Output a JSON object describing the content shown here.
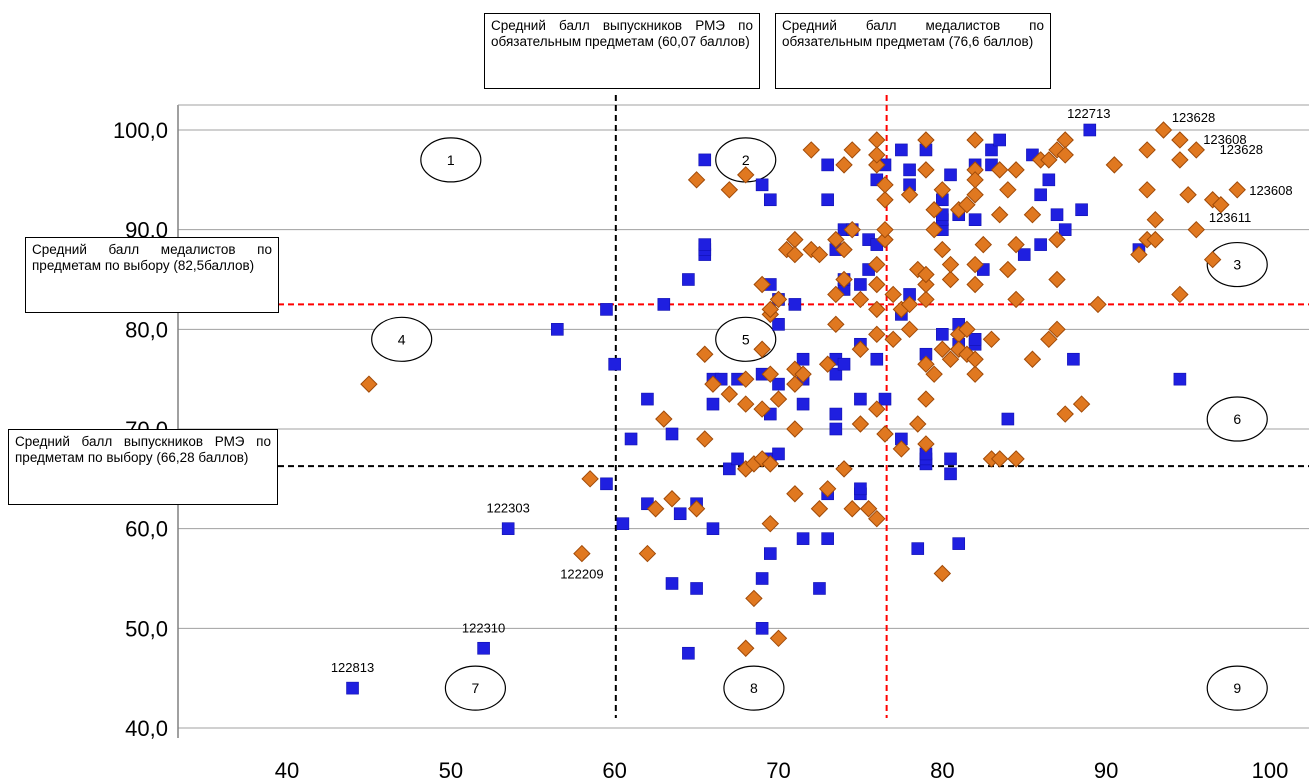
{
  "chart_data": {
    "type": "scatter",
    "xlim": [
      40,
      100
    ],
    "ylim": [
      40,
      100
    ],
    "x_ticks": [
      "40",
      "50",
      "60",
      "70",
      "80",
      "90",
      "100"
    ],
    "y_ticks": [
      "40,0",
      "50,0",
      "60,0",
      "70,0",
      "80,0",
      "90,0",
      "100,0"
    ],
    "grid": "horizontal",
    "series": [
      {
        "marker": "square",
        "color": "#1f1fe0",
        "points": [
          [
            44,
            44
          ],
          [
            52,
            48
          ],
          [
            53.5,
            60
          ],
          [
            56.5,
            80
          ],
          [
            59.5,
            64.5
          ],
          [
            59.5,
            82
          ],
          [
            60,
            76.5
          ],
          [
            60.5,
            60.5
          ],
          [
            61,
            69
          ],
          [
            62,
            62.5
          ],
          [
            62,
            73
          ],
          [
            63,
            82.5
          ],
          [
            63.5,
            54.5
          ],
          [
            63.5,
            69.5
          ],
          [
            64,
            61.5
          ],
          [
            64.5,
            47.5
          ],
          [
            64.5,
            85
          ],
          [
            65,
            54
          ],
          [
            65,
            62.5
          ],
          [
            65.5,
            87.5
          ],
          [
            65.5,
            88
          ],
          [
            65.5,
            88.5
          ],
          [
            65.5,
            97
          ],
          [
            66,
            60
          ],
          [
            66,
            72.5
          ],
          [
            66,
            75
          ],
          [
            66.5,
            75
          ],
          [
            67,
            66
          ],
          [
            67.5,
            75
          ],
          [
            67.5,
            67
          ],
          [
            69,
            50
          ],
          [
            69,
            55
          ],
          [
            69,
            75.5
          ],
          [
            69,
            94.5
          ],
          [
            69.5,
            57.5
          ],
          [
            69.5,
            67
          ],
          [
            69.5,
            71.5
          ],
          [
            69.5,
            84.5
          ],
          [
            69.5,
            93
          ],
          [
            70,
            67.5
          ],
          [
            70,
            74.5
          ],
          [
            70,
            80.5
          ],
          [
            70,
            83
          ],
          [
            71,
            82.5
          ],
          [
            71.5,
            59
          ],
          [
            71.5,
            72.5
          ],
          [
            71.5,
            75
          ],
          [
            71.5,
            77
          ],
          [
            72.5,
            54
          ],
          [
            73,
            59
          ],
          [
            73,
            63.5
          ],
          [
            73,
            93
          ],
          [
            73,
            96.5
          ],
          [
            73.5,
            70
          ],
          [
            73.5,
            71.5
          ],
          [
            73.5,
            75.5
          ],
          [
            73.5,
            77
          ],
          [
            73.5,
            88
          ],
          [
            74,
            76.5
          ],
          [
            74,
            84
          ],
          [
            74,
            85
          ],
          [
            74,
            90
          ],
          [
            74.5,
            90
          ],
          [
            75,
            63.5
          ],
          [
            75,
            64
          ],
          [
            75,
            73
          ],
          [
            75,
            78.5
          ],
          [
            75,
            84.5
          ],
          [
            75.5,
            86
          ],
          [
            75.5,
            89
          ],
          [
            76,
            77
          ],
          [
            76,
            88.5
          ],
          [
            76,
            95
          ],
          [
            76.5,
            73
          ],
          [
            76.5,
            96.5
          ],
          [
            77.5,
            69
          ],
          [
            77.5,
            81.5
          ],
          [
            77.5,
            98
          ],
          [
            78,
            83.5
          ],
          [
            78,
            94.5
          ],
          [
            78,
            96
          ],
          [
            78.5,
            58
          ],
          [
            79,
            66.5
          ],
          [
            79,
            67
          ],
          [
            79,
            67.5
          ],
          [
            79,
            77.5
          ],
          [
            79,
            98
          ],
          [
            80,
            79.5
          ],
          [
            80,
            90
          ],
          [
            80,
            91
          ],
          [
            80,
            91.5
          ],
          [
            80,
            93
          ],
          [
            80.5,
            65.5
          ],
          [
            80.5,
            67
          ],
          [
            80.5,
            95.5
          ],
          [
            81,
            58.5
          ],
          [
            81,
            78.5
          ],
          [
            81,
            80.5
          ],
          [
            81,
            91.5
          ],
          [
            82,
            78.5
          ],
          [
            82,
            79
          ],
          [
            82,
            91
          ],
          [
            82,
            96.5
          ],
          [
            82.5,
            86
          ],
          [
            83,
            96.5
          ],
          [
            83,
            98
          ],
          [
            83.5,
            99
          ],
          [
            84,
            71
          ],
          [
            85,
            87.5
          ],
          [
            85.5,
            97.5
          ],
          [
            86,
            88.5
          ],
          [
            86,
            93.5
          ],
          [
            86.5,
            95
          ],
          [
            87,
            91.5
          ],
          [
            87.5,
            90
          ],
          [
            88,
            77
          ],
          [
            88.5,
            92
          ],
          [
            89,
            100
          ],
          [
            92,
            88
          ],
          [
            94.5,
            75
          ]
        ]
      },
      {
        "marker": "diamond",
        "color": "#e07820",
        "points": [
          [
            45,
            74.5
          ],
          [
            58,
            57.5
          ],
          [
            58.5,
            65
          ],
          [
            62,
            57.5
          ],
          [
            62.5,
            62
          ],
          [
            63,
            71
          ],
          [
            63.5,
            63
          ],
          [
            65,
            62
          ],
          [
            65,
            95
          ],
          [
            65.5,
            69
          ],
          [
            65.5,
            77.5
          ],
          [
            66,
            74.5
          ],
          [
            67,
            94
          ],
          [
            67,
            73.5
          ],
          [
            68,
            48
          ],
          [
            68,
            75
          ],
          [
            68,
            66
          ],
          [
            68,
            72.5
          ],
          [
            68,
            95.5
          ],
          [
            68.5,
            53
          ],
          [
            68.5,
            66.5
          ],
          [
            69,
            67
          ],
          [
            69,
            78
          ],
          [
            69,
            72
          ],
          [
            69,
            84.5
          ],
          [
            69.5,
            60.5
          ],
          [
            69.5,
            75.5
          ],
          [
            69.5,
            66.5
          ],
          [
            69.5,
            81.5
          ],
          [
            69.5,
            82
          ],
          [
            70,
            49
          ],
          [
            70,
            73
          ],
          [
            70,
            83
          ],
          [
            70.5,
            88
          ],
          [
            71,
            76
          ],
          [
            71,
            70
          ],
          [
            71,
            74.5
          ],
          [
            71,
            63.5
          ],
          [
            71,
            89
          ],
          [
            71,
            87.5
          ],
          [
            71.5,
            75.5
          ],
          [
            72,
            88
          ],
          [
            72,
            98
          ],
          [
            72.5,
            87.5
          ],
          [
            72.5,
            62
          ],
          [
            73,
            64
          ],
          [
            73,
            76.5
          ],
          [
            73.5,
            80.5
          ],
          [
            73.5,
            83.5
          ],
          [
            73.5,
            89
          ],
          [
            74,
            66
          ],
          [
            74,
            88
          ],
          [
            74,
            96.5
          ],
          [
            74,
            85
          ],
          [
            74.5,
            62
          ],
          [
            74.5,
            98
          ],
          [
            74.5,
            90
          ],
          [
            75,
            70.5
          ],
          [
            75,
            78
          ],
          [
            75,
            83
          ],
          [
            75.5,
            62
          ],
          [
            76,
            61
          ],
          [
            76,
            72
          ],
          [
            76,
            96.5
          ],
          [
            76,
            84.5
          ],
          [
            76,
            79.5
          ],
          [
            76,
            86.5
          ],
          [
            76,
            99
          ],
          [
            76,
            97.5
          ],
          [
            76,
            82
          ],
          [
            76.5,
            69.5
          ],
          [
            76.5,
            93
          ],
          [
            76.5,
            89
          ],
          [
            76.5,
            90
          ],
          [
            76.5,
            94.5
          ],
          [
            77,
            79
          ],
          [
            77,
            83.5
          ],
          [
            77.5,
            68
          ],
          [
            77.5,
            82
          ],
          [
            78,
            80
          ],
          [
            78,
            93.5
          ],
          [
            78,
            82.5
          ],
          [
            78.5,
            70.5
          ],
          [
            78.5,
            86
          ],
          [
            79,
            68.5
          ],
          [
            79,
            76.5
          ],
          [
            79,
            73
          ],
          [
            79,
            83
          ],
          [
            79,
            84.5
          ],
          [
            79,
            85.5
          ],
          [
            79,
            99
          ],
          [
            79,
            96
          ],
          [
            79.5,
            75.5
          ],
          [
            79.5,
            90
          ],
          [
            79.5,
            92
          ],
          [
            80,
            55.5
          ],
          [
            80,
            88
          ],
          [
            80,
            78
          ],
          [
            80,
            94
          ],
          [
            80.5,
            77
          ],
          [
            80.5,
            85
          ],
          [
            80.5,
            86.5
          ],
          [
            81,
            79.5
          ],
          [
            81,
            78
          ],
          [
            81,
            92
          ],
          [
            81.5,
            92.5
          ],
          [
            81.5,
            80
          ],
          [
            81.5,
            77.5
          ],
          [
            82,
            75.5
          ],
          [
            82,
            77
          ],
          [
            82,
            84.5
          ],
          [
            82,
            86.5
          ],
          [
            82,
            96
          ],
          [
            82,
            93.5
          ],
          [
            82,
            95
          ],
          [
            82,
            99
          ],
          [
            82.5,
            88.5
          ],
          [
            83,
            79
          ],
          [
            83,
            67
          ],
          [
            83.5,
            67
          ],
          [
            83.5,
            91.5
          ],
          [
            83.5,
            96
          ],
          [
            84,
            86
          ],
          [
            84,
            94
          ],
          [
            84.5,
            88.5
          ],
          [
            84.5,
            67
          ],
          [
            84.5,
            83
          ],
          [
            84.5,
            96
          ],
          [
            85.5,
            77
          ],
          [
            85.5,
            91.5
          ],
          [
            86,
            97
          ],
          [
            86.5,
            79
          ],
          [
            86.5,
            97
          ],
          [
            87,
            80
          ],
          [
            87,
            85
          ],
          [
            87,
            89
          ],
          [
            87,
            98
          ],
          [
            87.5,
            71.5
          ],
          [
            87.5,
            99
          ],
          [
            87.5,
            97.5
          ],
          [
            88.5,
            72.5
          ],
          [
            89.5,
            82.5
          ],
          [
            90.5,
            96.5
          ],
          [
            92,
            87.5
          ],
          [
            92.5,
            89
          ],
          [
            92.5,
            94
          ],
          [
            92.5,
            98
          ],
          [
            93,
            89
          ],
          [
            93,
            91
          ],
          [
            93.5,
            100
          ],
          [
            94.5,
            97
          ],
          [
            94.5,
            83.5
          ],
          [
            94.5,
            99
          ],
          [
            95,
            93.5
          ],
          [
            95.5,
            90
          ],
          [
            95.5,
            98
          ],
          [
            96.5,
            87
          ],
          [
            96.5,
            93
          ],
          [
            97,
            92.5
          ],
          [
            98,
            94
          ]
        ]
      }
    ],
    "point_labels": [
      {
        "text": "122813",
        "x": 44,
        "y": 44
      },
      {
        "text": "122310",
        "x": 52,
        "y": 48
      },
      {
        "text": "122303",
        "x": 53.5,
        "y": 60
      },
      {
        "text": "122209",
        "x": 58,
        "y": 57.5
      },
      {
        "text": "122713",
        "x": 89,
        "y": 100
      },
      {
        "text": "123628",
        "x": 93.5,
        "y": 100
      },
      {
        "text": "123608",
        "x": 94.5,
        "y": 99
      },
      {
        "text": "123628",
        "x": 95.5,
        "y": 98
      },
      {
        "text": "123608",
        "x": 98,
        "y": 94
      },
      {
        "text": "123611",
        "x": 97,
        "y": 92.5
      }
    ],
    "reference_lines": [
      {
        "axis": "x",
        "value": 60.07,
        "color": "#000000",
        "label": "Средний балл выпускников РМЭ по обязательным предметам (60,07 баллов)"
      },
      {
        "axis": "x",
        "value": 76.6,
        "color": "#ff0000",
        "label": "Средний балл медалистов по обязательным предметам (76,6 баллов)"
      },
      {
        "axis": "y",
        "value": 82.5,
        "color": "#ff0000",
        "label": "Средний балл медалистов по предметам по выбору (82,5баллов)"
      },
      {
        "axis": "y",
        "value": 66.28,
        "color": "#000000",
        "label": "Средний балл выпускников РМЭ по предметам по выбору (66,28 баллов)"
      }
    ],
    "zones": [
      {
        "label": "1",
        "x": 50,
        "y": 97
      },
      {
        "label": "2",
        "x": 68,
        "y": 97
      },
      {
        "label": "3",
        "x": 98,
        "y": 86.5
      },
      {
        "label": "4",
        "x": 47,
        "y": 79
      },
      {
        "label": "5",
        "x": 68,
        "y": 79
      },
      {
        "label": "6",
        "x": 98,
        "y": 71
      },
      {
        "label": "7",
        "x": 51.5,
        "y": 44
      },
      {
        "label": "8",
        "x": 68.5,
        "y": 44
      },
      {
        "label": "9",
        "x": 98,
        "y": 44
      }
    ]
  }
}
